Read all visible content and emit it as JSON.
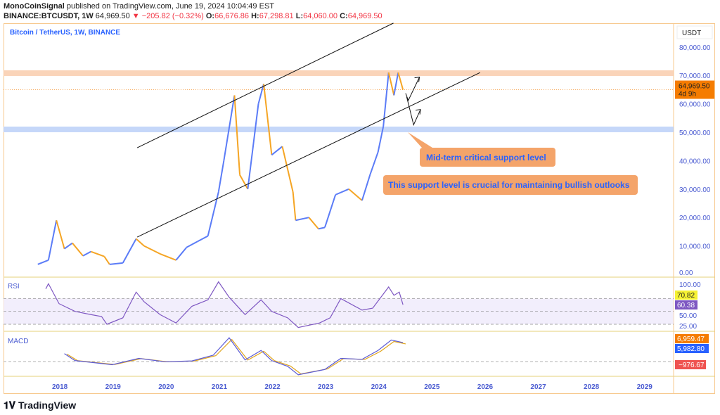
{
  "header": {
    "author": "MonoCoinSignal",
    "published": "published on TradingView.com, June 19, 2024 10:04:49 EST",
    "symbol": "BINANCE:BTCUSDT, 1W",
    "last": "64,969.50",
    "change": "▼ −205.82 (−0.32%)",
    "o_label": "O:",
    "o": "66,676.86",
    "h_label": "H:",
    "h": "67,298.81",
    "l_label": "L:",
    "l": "64,060.00",
    "c_label": "C:",
    "c": "64,969.50"
  },
  "chart_data": {
    "type": "line",
    "title": "Bitcoin / TetherUS, 1W, BINANCE",
    "currency": "USDT",
    "xlim": [
      2017.6,
      2029.6
    ],
    "ylim": [
      0,
      88000
    ],
    "x_ticks": [
      "2018",
      "2019",
      "2020",
      "2021",
      "2022",
      "2023",
      "2024",
      "2025",
      "2026",
      "2027",
      "2028",
      "2029"
    ],
    "y_ticks": [
      0,
      10000,
      20000,
      30000,
      40000,
      50000,
      60000,
      70000,
      80000
    ],
    "y_tick_labels": [
      "0.00",
      "10,000.00",
      "20,000.00",
      "30,000.00",
      "40,000.00",
      "50,000.00",
      "60,000.00",
      "70,000.00",
      "80,000.00"
    ],
    "price": [
      [
        2017.6,
        3500
      ],
      [
        2017.8,
        5000
      ],
      [
        2017.95,
        19000
      ],
      [
        2018.1,
        9000
      ],
      [
        2018.25,
        11000
      ],
      [
        2018.45,
        6500
      ],
      [
        2018.6,
        8000
      ],
      [
        2018.85,
        6300
      ],
      [
        2018.95,
        3500
      ],
      [
        2019.2,
        4000
      ],
      [
        2019.45,
        12500
      ],
      [
        2019.6,
        10000
      ],
      [
        2019.9,
        7200
      ],
      [
        2020.2,
        5000
      ],
      [
        2020.4,
        9500
      ],
      [
        2020.6,
        11500
      ],
      [
        2020.8,
        13500
      ],
      [
        2021.0,
        29000
      ],
      [
        2021.1,
        40000
      ],
      [
        2021.3,
        63000
      ],
      [
        2021.4,
        35000
      ],
      [
        2021.55,
        30000
      ],
      [
        2021.75,
        60000
      ],
      [
        2021.85,
        67000
      ],
      [
        2022.0,
        42000
      ],
      [
        2022.2,
        45000
      ],
      [
        2022.4,
        29000
      ],
      [
        2022.45,
        19000
      ],
      [
        2022.7,
        20000
      ],
      [
        2022.88,
        16000
      ],
      [
        2023.0,
        16500
      ],
      [
        2023.2,
        28000
      ],
      [
        2023.45,
        30000
      ],
      [
        2023.7,
        26000
      ],
      [
        2023.85,
        35000
      ],
      [
        2024.0,
        43000
      ],
      [
        2024.1,
        52000
      ],
      [
        2024.2,
        71000
      ],
      [
        2024.3,
        63000
      ],
      [
        2024.38,
        71000
      ],
      [
        2024.47,
        64969.5
      ]
    ],
    "price_colors": {
      "up": "#5b7cf7",
      "down": "#f5a524"
    },
    "levels": [
      {
        "price": 70800,
        "color": "#f9c9a8"
      },
      {
        "price": 51000,
        "color": "#b7cdf7"
      }
    ],
    "last_price": {
      "value": "64,969.50",
      "countdown": "4d 9h",
      "color": "#f57c00"
    },
    "trendlines": [
      [
        [
          2019.47,
          44550
        ],
        [
          2024.29,
          88400
        ]
      ],
      [
        [
          2019.47,
          13100
        ],
        [
          2025.92,
          71000
        ]
      ]
    ],
    "arrows": [
      [
        [
          2024.52,
          63700
        ],
        [
          2024.57,
          61200
        ],
        [
          2024.78,
          69400
        ]
      ],
      [
        [
          2024.54,
          62400
        ],
        [
          2024.67,
          52600
        ],
        [
          2024.8,
          58000
        ]
      ]
    ],
    "annotations": [
      "Mid-term critical support level",
      "This support level is crucial for maintaining bullish outlooks"
    ],
    "rsi": {
      "label": "RSI",
      "ticks": [
        "100.00",
        "50.00",
        "25.00"
      ],
      "value": "60.38",
      "ma_value": "70.82",
      "bands": [
        70,
        50,
        30
      ],
      "points": [
        [
          2017.75,
          85
        ],
        [
          2017.8,
          93
        ],
        [
          2018.0,
          62
        ],
        [
          2018.3,
          50
        ],
        [
          2018.6,
          45
        ],
        [
          2018.8,
          42
        ],
        [
          2018.9,
          30
        ],
        [
          2019.2,
          40
        ],
        [
          2019.45,
          80
        ],
        [
          2019.6,
          65
        ],
        [
          2019.9,
          45
        ],
        [
          2020.2,
          32
        ],
        [
          2020.5,
          58
        ],
        [
          2020.8,
          68
        ],
        [
          2021.0,
          96
        ],
        [
          2021.2,
          72
        ],
        [
          2021.5,
          45
        ],
        [
          2021.8,
          68
        ],
        [
          2022.0,
          50
        ],
        [
          2022.3,
          40
        ],
        [
          2022.5,
          25
        ],
        [
          2022.9,
          32
        ],
        [
          2023.1,
          40
        ],
        [
          2023.3,
          70
        ],
        [
          2023.7,
          52
        ],
        [
          2023.9,
          55
        ],
        [
          2024.2,
          88
        ],
        [
          2024.3,
          75
        ],
        [
          2024.4,
          80
        ],
        [
          2024.47,
          60.38
        ]
      ]
    },
    "macd": {
      "label": "MACD",
      "macd_value": "5,982.80",
      "signal_value": "6,959.47",
      "hist_value": "−976.67",
      "points": [
        [
          2018.1,
          2500
        ],
        [
          2018.3,
          300
        ],
        [
          2019.0,
          -1000
        ],
        [
          2019.5,
          1000
        ],
        [
          2020.0,
          -100
        ],
        [
          2020.5,
          200
        ],
        [
          2020.9,
          2000
        ],
        [
          2021.2,
          7500
        ],
        [
          2021.5,
          500
        ],
        [
          2021.8,
          3500
        ],
        [
          2022.0,
          300
        ],
        [
          2022.3,
          -1500
        ],
        [
          2022.5,
          -4200
        ],
        [
          2023.0,
          -2500
        ],
        [
          2023.3,
          1000
        ],
        [
          2023.7,
          700
        ],
        [
          2024.0,
          3500
        ],
        [
          2024.25,
          6800
        ],
        [
          2024.47,
          5982.8
        ]
      ]
    }
  },
  "footer": {
    "logo": "TradingView"
  }
}
